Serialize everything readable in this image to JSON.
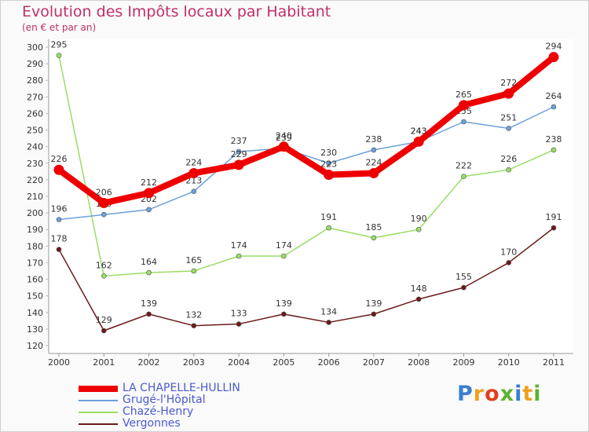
{
  "header": {
    "title": "Evolution des Impôts locaux par Habitant",
    "subtitle": "(en € et par an)"
  },
  "chart_data": {
    "type": "line",
    "title": "Evolution des Impôts locaux par Habitant",
    "subtitle": "(en € et par an)",
    "xlabel": "",
    "ylabel": "",
    "x": [
      "2000",
      "2001",
      "2002",
      "2003",
      "2004",
      "2005",
      "2006",
      "2007",
      "2008",
      "2009",
      "2010",
      "2011"
    ],
    "ylim": [
      120,
      300
    ],
    "yticks": [
      120,
      130,
      140,
      150,
      160,
      170,
      180,
      190,
      200,
      210,
      220,
      230,
      240,
      250,
      260,
      270,
      280,
      290,
      300
    ],
    "grid": false,
    "legend_position": "bottom-left",
    "series": [
      {
        "name": "Vergonnes",
        "color": "#6b1a1a",
        "values": [
          178,
          129,
          139,
          132,
          133,
          139,
          134,
          139,
          148,
          155,
          170,
          191
        ]
      },
      {
        "name": "Chazé-Henry",
        "color": "#99dd66",
        "values": [
          295,
          162,
          164,
          165,
          174,
          174,
          191,
          185,
          190,
          222,
          226,
          238
        ]
      },
      {
        "name": "Grugé-l'Hôpital",
        "color": "#6ca0d8",
        "values": [
          196,
          199,
          202,
          213,
          237,
          239,
          230,
          238,
          243,
          255,
          251,
          264
        ]
      },
      {
        "name": "LA CHAPELLE-HULLIN",
        "color": "#ee0000",
        "values": [
          226,
          206,
          212,
          224,
          229,
          240,
          223,
          224,
          243,
          265,
          272,
          294
        ]
      }
    ]
  },
  "legend": [
    {
      "name": "LA CHAPELLE-HULLIN",
      "color": "#ee0000"
    },
    {
      "name": "Grugé-l'Hôpital",
      "color": "#6ca0d8"
    },
    {
      "name": "Chazé-Henry",
      "color": "#99dd66"
    },
    {
      "name": "Vergonnes",
      "color": "#6b1a1a"
    }
  ],
  "logo": {
    "text": "Proxiti",
    "letters": [
      "P",
      "r",
      "o",
      "x",
      "i",
      "t",
      "i"
    ],
    "colors": [
      "#3a7fd0",
      "#f0a020",
      "#e04020",
      "#60b030",
      "#3a7fd0",
      "#f0a020",
      "#60b030"
    ]
  }
}
